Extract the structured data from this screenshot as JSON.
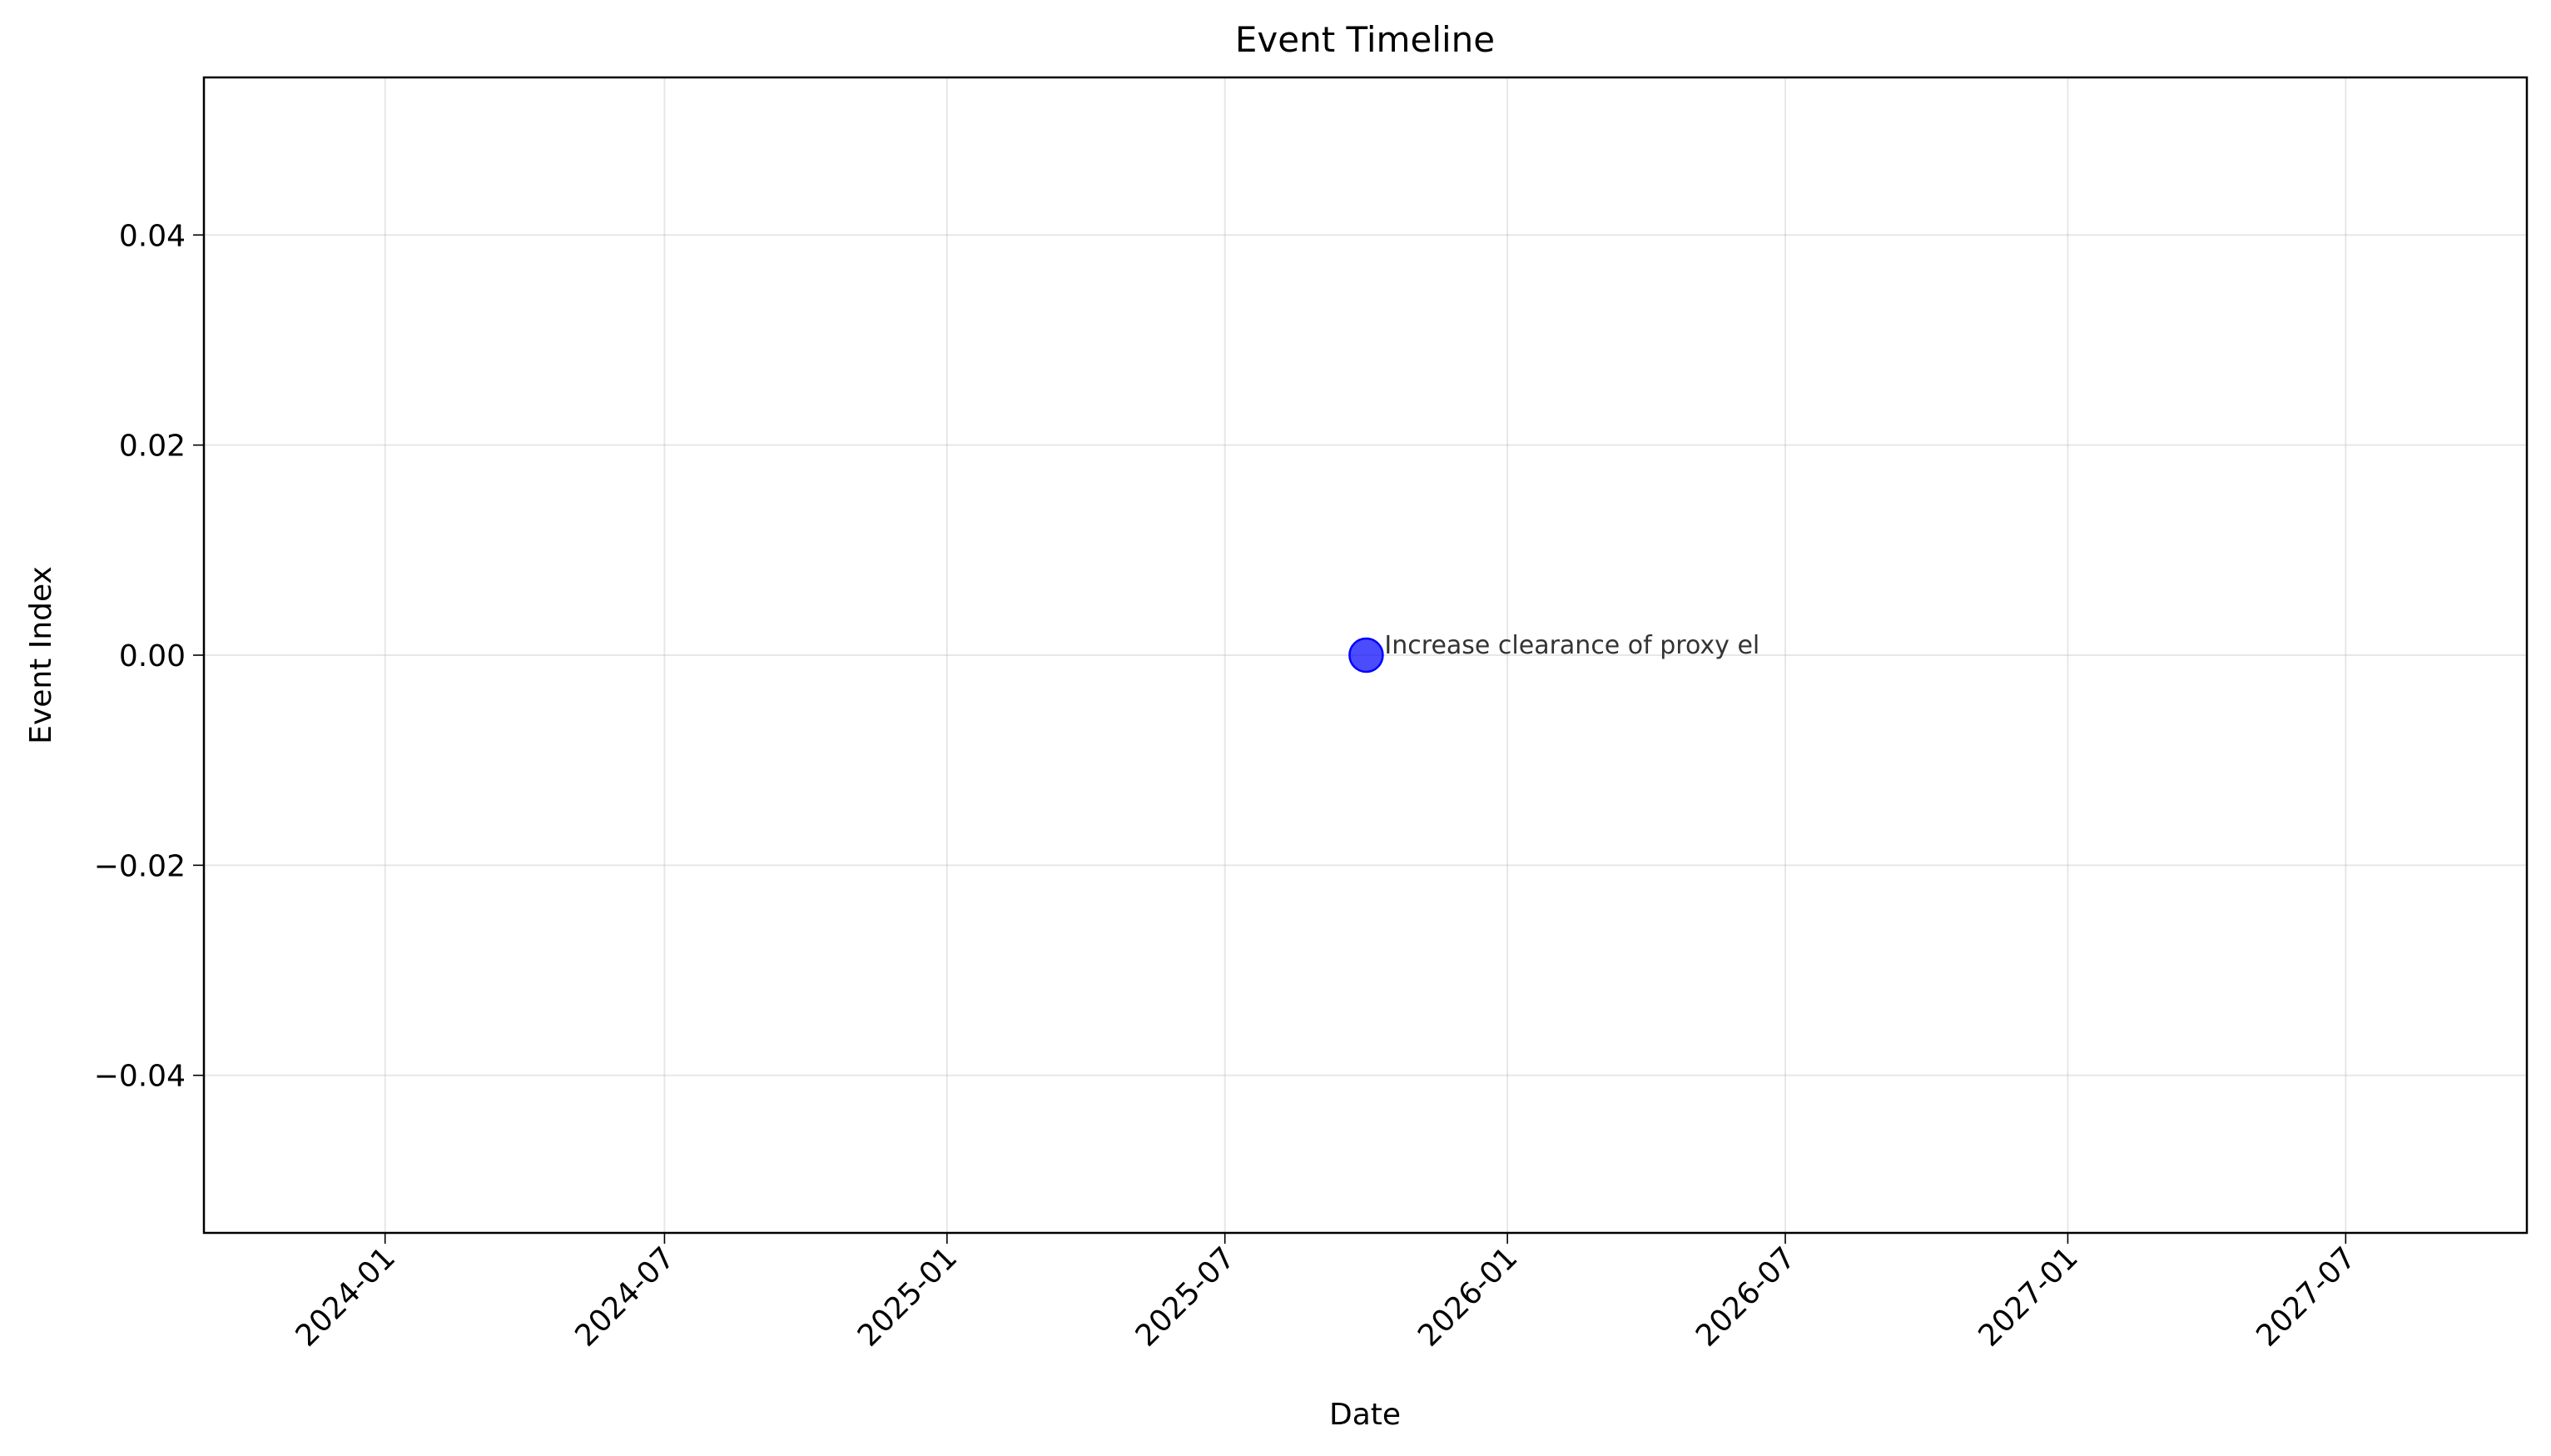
{
  "chart_data": {
    "type": "scatter",
    "title": "Event Timeline",
    "xlabel": "Date",
    "ylabel": "Event Index",
    "x_ticks": [
      "2024-01",
      "2024-07",
      "2025-01",
      "2025-07",
      "2026-01",
      "2026-07",
      "2027-01",
      "2027-07"
    ],
    "y_ticks": [
      0.04,
      0.02,
      0.0,
      -0.02,
      -0.04
    ],
    "y_tick_labels": [
      "0.04",
      "0.02",
      "0.00",
      "−0.02",
      "−0.04"
    ],
    "xlim": [
      "2023-09-05",
      "2027-10-27"
    ],
    "ylim": [
      -0.055,
      0.055
    ],
    "grid": true,
    "points": [
      {
        "date": "2025-10-01",
        "value": 0,
        "label": "Increase clearance of proxy el",
        "color": "#0000ff"
      }
    ]
  }
}
